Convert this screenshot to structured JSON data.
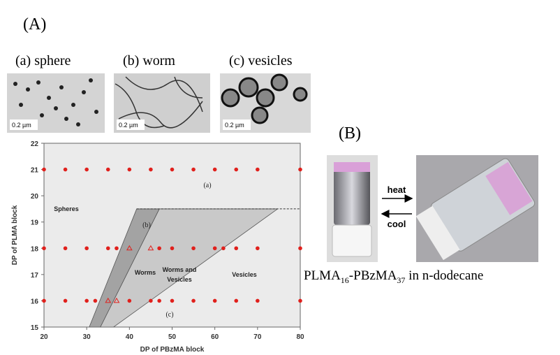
{
  "panel_a": {
    "label": "(A)",
    "images": [
      {
        "label": "(a) sphere",
        "scale": "0.2 µm"
      },
      {
        "label": "(b) worm",
        "scale": "0.2 µm"
      },
      {
        "label": "(c) vesicles",
        "scale": "0.2 µm"
      }
    ]
  },
  "chart_data": {
    "type": "scatter",
    "xlabel": "DP of PBzMA block",
    "ylabel": "DP of PLMA block",
    "xlim": [
      20,
      80
    ],
    "ylim": [
      15,
      22
    ],
    "xticks": [
      20,
      30,
      40,
      50,
      60,
      70,
      80
    ],
    "yticks": [
      15,
      16,
      17,
      18,
      19,
      20,
      21,
      22
    ],
    "series": [
      {
        "marker": "circle",
        "color": "#e0201c",
        "x": [
          20,
          25,
          30,
          35,
          40,
          45,
          50,
          55,
          60,
          65,
          70,
          80,
          20,
          25,
          30,
          35,
          37,
          47,
          50,
          55,
          60,
          62,
          65,
          70,
          80,
          20,
          25,
          30,
          32,
          40,
          45,
          47,
          50,
          55,
          60,
          65,
          70,
          80
        ],
        "y": [
          21,
          21,
          21,
          21,
          21,
          21,
          21,
          21,
          21,
          21,
          21,
          21,
          18,
          18,
          18,
          18,
          18,
          18,
          18,
          18,
          18,
          18,
          18,
          18,
          18,
          16,
          16,
          16,
          16,
          16,
          16,
          16,
          16,
          16,
          16,
          16,
          16,
          16
        ]
      },
      {
        "marker": "triangle",
        "color": "#e0201c",
        "x": [
          40,
          45,
          35,
          37
        ],
        "y": [
          18,
          18,
          16,
          16
        ]
      }
    ],
    "regions": [
      {
        "color": "#c9c9c9",
        "points": [
          [
            33.2,
            15
          ],
          [
            36.3,
            15
          ],
          [
            74.7,
            19.5
          ],
          [
            47,
            19.5
          ]
        ]
      },
      {
        "color": "#a3a3a3",
        "points": [
          [
            30.6,
            15
          ],
          [
            33.2,
            15
          ],
          [
            47,
            19.5
          ],
          [
            41.7,
            19.5
          ]
        ]
      }
    ],
    "boundary_y": 19.5,
    "annotations": [
      "Spheres",
      "Worms",
      "Worms and",
      "Vesicles",
      "Vesicles",
      "(a)",
      "(b)",
      "(c)"
    ]
  },
  "panel_b": {
    "label": "(B)",
    "arrow_top": "heat",
    "arrow_bottom": "cool",
    "caption": [
      "PLMA",
      "16",
      "-PBzMA",
      "37",
      " in n-dodecane"
    ]
  }
}
